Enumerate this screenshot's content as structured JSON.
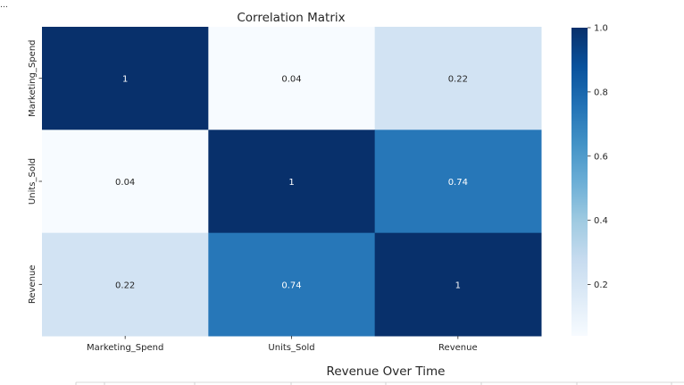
{
  "output_prompt": "…",
  "chart_data": [
    {
      "type": "heatmap",
      "title": "Correlation Matrix",
      "x_labels": [
        "Marketing_Spend",
        "Units_Sold",
        "Revenue"
      ],
      "y_labels": [
        "Marketing_Spend",
        "Units_Sold",
        "Revenue"
      ],
      "values": [
        [
          1,
          0.04,
          0.22
        ],
        [
          0.04,
          1,
          0.74
        ],
        [
          0.22,
          0.74,
          1
        ]
      ],
      "annotations": [
        [
          "1",
          "0.04",
          "0.22"
        ],
        [
          "0.04",
          "1",
          "0.74"
        ],
        [
          "0.22",
          "0.74",
          "1"
        ]
      ],
      "colormap": "Blues",
      "colorbar": {
        "vmin": 0.04,
        "vmax": 1.0,
        "ticks": [
          0.2,
          0.4,
          0.6,
          0.8,
          1.0
        ],
        "tick_labels": [
          "0.2",
          "0.4",
          "0.6",
          "0.8",
          "1.0"
        ]
      }
    },
    {
      "type": "line",
      "title": "Revenue Over Time"
    }
  ],
  "colors": {
    "text": "#262626",
    "light_annotation": "#ffffff",
    "dark_annotation": "#262626"
  }
}
